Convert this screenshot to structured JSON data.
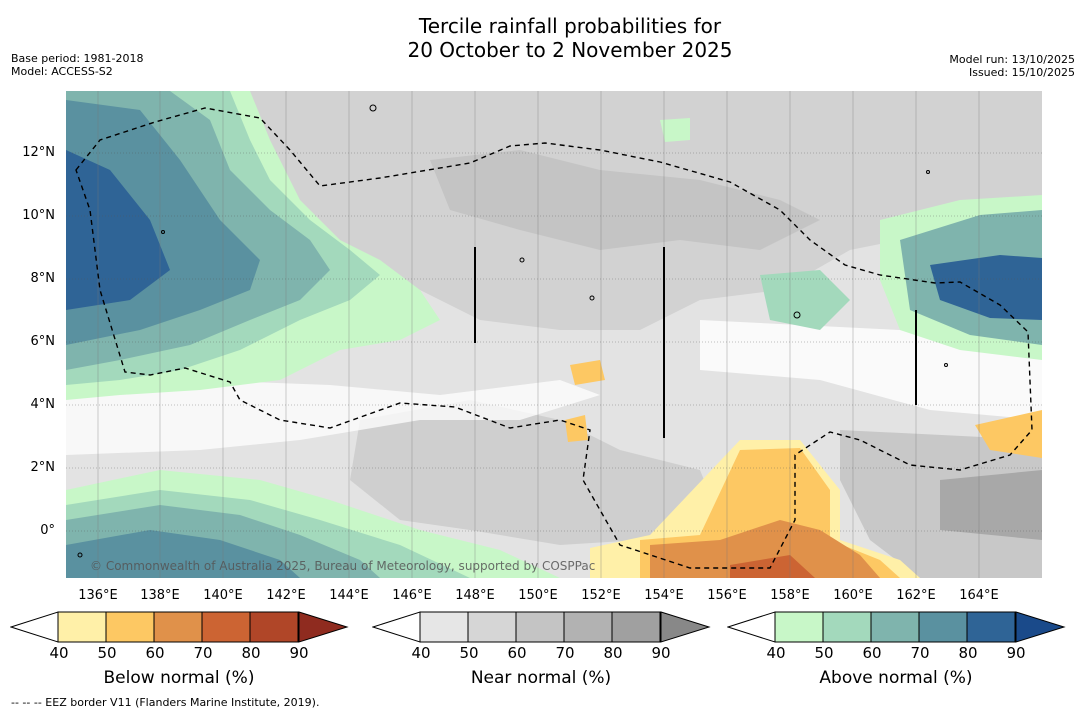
{
  "title_line1": "Tercile rainfall probabilities for",
  "title_line2": "20 October to 2 November 2025",
  "meta_left": {
    "base_period": "Base period: 1981-2018",
    "model": "Model: ACCESS-S2"
  },
  "meta_right": {
    "model_run": "Model run: 13/10/2025",
    "issued": "Issued: 15/10/2025"
  },
  "map": {
    "lat_labels": [
      "12°N",
      "10°N",
      "8°N",
      "6°N",
      "4°N",
      "2°N",
      "0°"
    ],
    "lon_labels": [
      "136°E",
      "138°E",
      "140°E",
      "142°E",
      "144°E",
      "146°E",
      "148°E",
      "150°E",
      "152°E",
      "154°E",
      "156°E",
      "158°E",
      "160°E",
      "162°E",
      "164°E"
    ],
    "copyright": "© Commonwealth of Australia 2025, Bureau of Meteorology, supported by COSPPac",
    "eez_border_legend": "--  --  -- EEZ border V11 (Flanders Marine Institute, 2019)."
  },
  "colorbars": [
    {
      "id": "below",
      "label": "Below normal (%)",
      "ticks": [
        "40",
        "50",
        "60",
        "70",
        "80",
        "90"
      ],
      "colors": [
        "#fff0a8",
        "#fdc863",
        "#e0914a",
        "#cc6433",
        "#b04628",
        "#8f2b1f"
      ]
    },
    {
      "id": "near",
      "label": "Near normal (%)",
      "ticks": [
        "40",
        "50",
        "60",
        "70",
        "80",
        "90"
      ],
      "colors": [
        "#e6e6e6",
        "#d6d6d6",
        "#c4c4c4",
        "#b2b2b2",
        "#a0a0a0",
        "#888888"
      ]
    },
    {
      "id": "above",
      "label": "Above normal (%)",
      "ticks": [
        "40",
        "50",
        "60",
        "70",
        "80",
        "90"
      ],
      "colors": [
        "#c8f7c8",
        "#a3d9bc",
        "#7fb4ad",
        "#5a91a0",
        "#2f6496",
        "#1a4a8a"
      ]
    }
  ]
}
